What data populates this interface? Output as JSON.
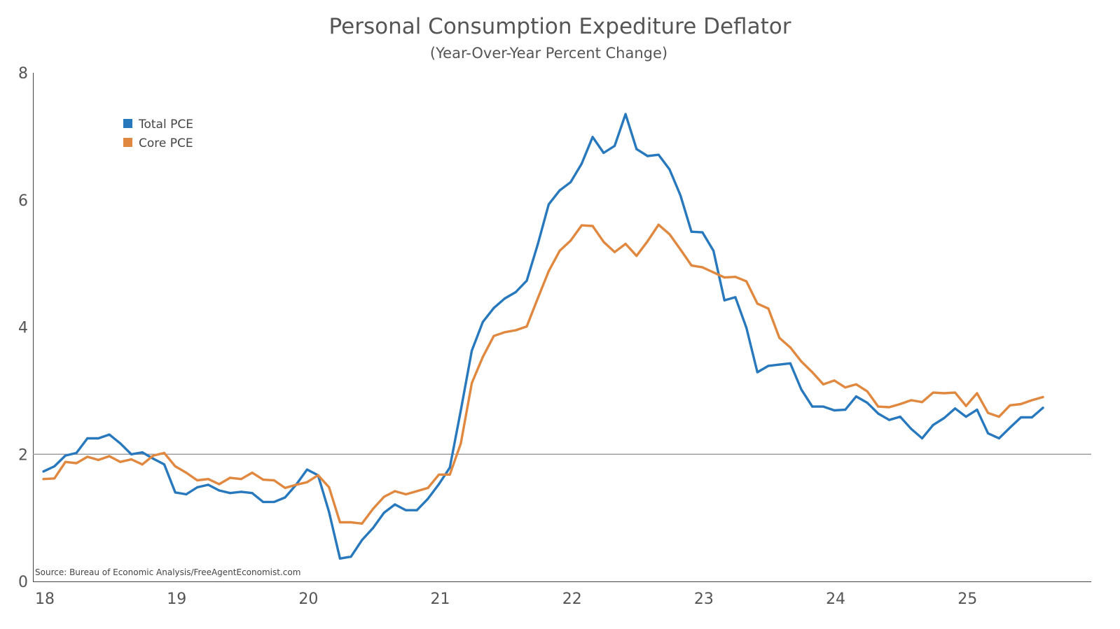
{
  "chart_data": {
    "type": "line",
    "title": "Personal Consumption Expediture Deflator",
    "subtitle": "(Year-Over-Year Percent Change)",
    "source": "Source: Bureau of Economic Analysis/FreeAgentEconomist.com",
    "x_start": "2018-01",
    "x_end": "2025-07",
    "xlim": [
      2017.92,
      2025.95
    ],
    "ylim": [
      0,
      8
    ],
    "x_ticks": [
      {
        "label": "18",
        "value": 2018
      },
      {
        "label": "19",
        "value": 2019
      },
      {
        "label": "20",
        "value": 2020
      },
      {
        "label": "21",
        "value": 2021
      },
      {
        "label": "22",
        "value": 2022
      },
      {
        "label": "23",
        "value": 2023
      },
      {
        "label": "24",
        "value": 2024
      },
      {
        "label": "25",
        "value": 2025
      }
    ],
    "y_ticks": [
      {
        "label": "0",
        "value": 0
      },
      {
        "label": "2",
        "value": 2
      },
      {
        "label": "4",
        "value": 4
      },
      {
        "label": "6",
        "value": 6
      },
      {
        "label": "8",
        "value": 8
      }
    ],
    "reference_line": 2,
    "grid": false,
    "legend_position": "top-left",
    "series": [
      {
        "name": "Total PCE",
        "color": "#2878bd",
        "values": [
          1.73,
          1.81,
          1.98,
          2.02,
          2.25,
          2.25,
          2.31,
          2.17,
          2.0,
          2.03,
          1.93,
          1.84,
          1.4,
          1.37,
          1.48,
          1.52,
          1.43,
          1.39,
          1.41,
          1.39,
          1.25,
          1.25,
          1.32,
          1.52,
          1.76,
          1.67,
          1.09,
          0.36,
          0.39,
          0.65,
          0.84,
          1.08,
          1.21,
          1.12,
          1.12,
          1.3,
          1.53,
          1.79,
          2.69,
          3.63,
          4.08,
          4.3,
          4.45,
          4.55,
          4.73,
          5.3,
          5.93,
          6.15,
          6.28,
          6.57,
          6.99,
          6.74,
          6.85,
          7.35,
          6.8,
          6.69,
          6.71,
          6.48,
          6.07,
          5.5,
          5.49,
          5.2,
          4.42,
          4.47,
          3.99,
          3.29,
          3.39,
          3.41,
          3.43,
          3.02,
          2.75,
          2.75,
          2.69,
          2.7,
          2.91,
          2.81,
          2.64,
          2.54,
          2.59,
          2.4,
          2.25,
          2.46,
          2.57,
          2.72,
          2.59,
          2.7,
          2.33,
          2.25,
          2.42,
          2.58,
          2.58,
          2.73
        ]
      },
      {
        "name": "Core PCE",
        "color": "#e0883f",
        "values": [
          1.61,
          1.62,
          1.88,
          1.86,
          1.96,
          1.91,
          1.97,
          1.88,
          1.92,
          1.84,
          1.98,
          2.02,
          1.81,
          1.71,
          1.59,
          1.61,
          1.53,
          1.63,
          1.61,
          1.71,
          1.6,
          1.59,
          1.47,
          1.52,
          1.56,
          1.67,
          1.48,
          0.93,
          0.93,
          0.91,
          1.14,
          1.33,
          1.42,
          1.37,
          1.42,
          1.47,
          1.68,
          1.68,
          2.17,
          3.12,
          3.53,
          3.86,
          3.92,
          3.95,
          4.01,
          4.45,
          4.88,
          5.2,
          5.36,
          5.6,
          5.59,
          5.34,
          5.18,
          5.31,
          5.12,
          5.35,
          5.61,
          5.46,
          5.22,
          4.97,
          4.94,
          4.86,
          4.78,
          4.79,
          4.72,
          4.37,
          4.29,
          3.83,
          3.68,
          3.46,
          3.29,
          3.1,
          3.16,
          3.05,
          3.1,
          2.99,
          2.75,
          2.74,
          2.79,
          2.85,
          2.82,
          2.97,
          2.96,
          2.97,
          2.76,
          2.96,
          2.65,
          2.59,
          2.77,
          2.79,
          2.85,
          2.9
        ]
      }
    ]
  }
}
